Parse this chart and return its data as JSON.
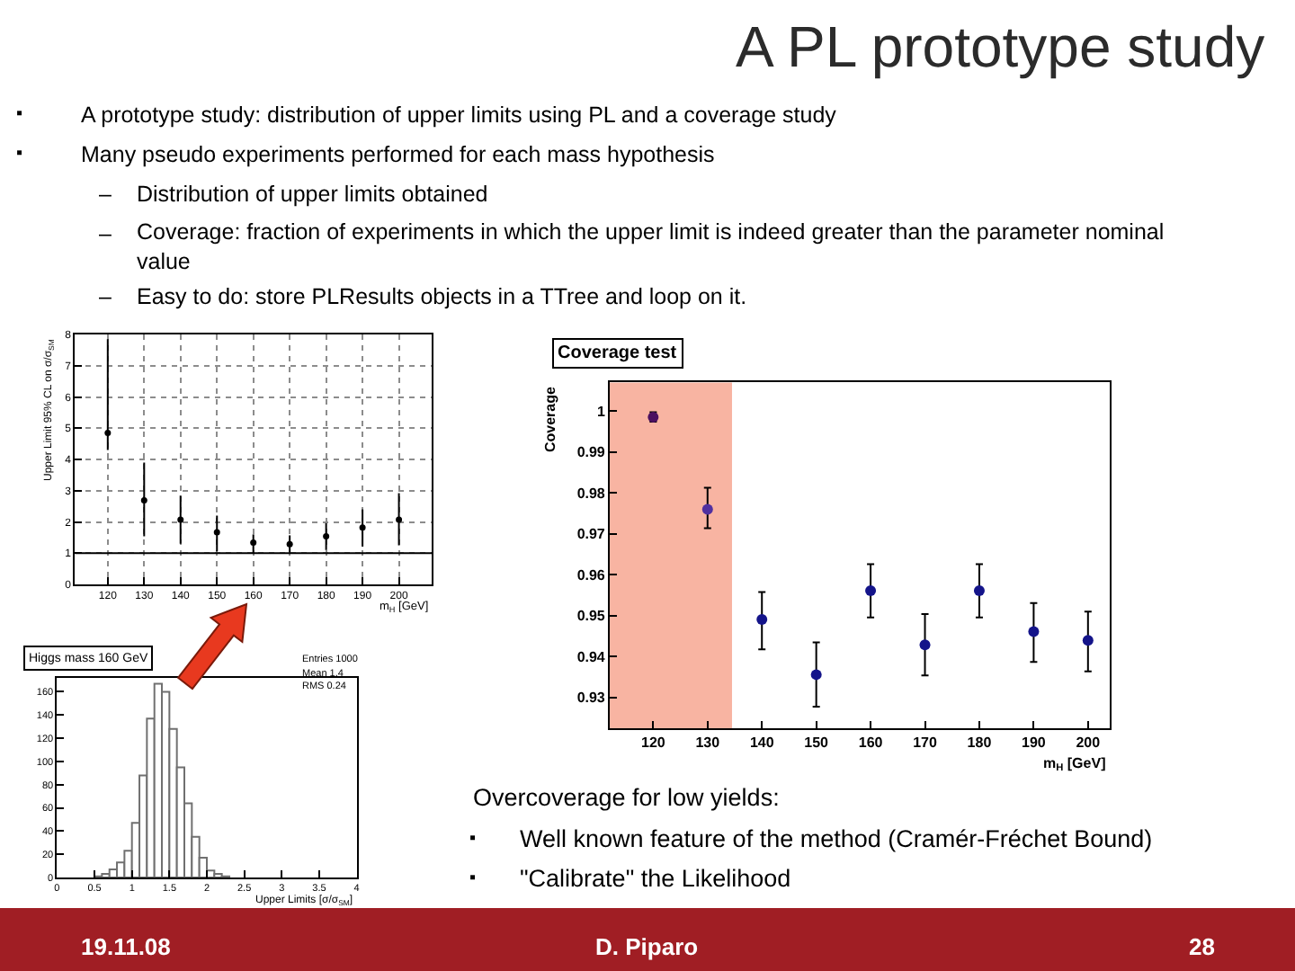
{
  "chart_data": [
    {
      "type": "other",
      "title": "A PL prototype study",
      "annotations": [
        "▪",
        "A prototype study: distribution of upper limits using PL and a coverage study",
        "▪",
        "Many pseudo experiments performed for each mass hypothesis",
        "–",
        "Distribution of upper limits obtained",
        "–",
        "Coverage: fraction of experiments in which the upper limit is indeed greater than the parameter nominal\nvalue",
        "–",
        "Easy to do: store PLResults objects in a TTree and loop on it.",
        "Overcoverage for low yields:",
        "▪",
        "Well known feature of the method (Cramér-Fréchet Bound)",
        "▪",
        "\"Calibrate\" the Likelihood",
        "19.11.08",
        "D. Piparo",
        "28"
      ]
    },
    {
      "type": "scatter",
      "xlabel": "m$_{H}$ [GeV]",
      "ylabel": "Upper Limit 95% CL on σ/σ$_{SM}$",
      "x": [
        120,
        130,
        140,
        150,
        160,
        170,
        180,
        190,
        200
      ],
      "values": [
        4.85,
        2.69,
        2.07,
        1.67,
        1.34,
        1.29,
        1.54,
        1.82,
        2.07
      ],
      "errors": [
        [
          4.3,
          7.85
        ],
        [
          1.54,
          3.9
        ],
        [
          1.3,
          2.84
        ],
        [
          1.06,
          2.2
        ],
        [
          0.98,
          1.6
        ],
        [
          1.02,
          1.57
        ],
        [
          1.1,
          1.96
        ],
        [
          1.21,
          2.4
        ],
        [
          1.25,
          2.92
        ]
      ],
      "color": "#000000",
      "marker": "circle",
      "xlim": [
        111,
        209
      ],
      "ylim": [
        0,
        8
      ],
      "xticks": [
        120,
        130,
        140,
        150,
        160,
        170,
        180,
        190,
        200
      ],
      "yticks": [
        0,
        1,
        2,
        3,
        4,
        5,
        6,
        7,
        8
      ],
      "grid": true,
      "ref_lines": [
        {
          "axis": "y",
          "value": 1,
          "color": "#000000"
        }
      ]
    },
    {
      "type": "scatter",
      "title": "Coverage test",
      "xlabel": "m$_{H}$ [GeV]",
      "ylabel": "Coverage",
      "x": [
        120,
        130,
        140,
        150,
        160,
        170,
        180,
        190,
        200
      ],
      "values": [
        0.9985,
        0.976,
        0.9491,
        0.9356,
        0.9561,
        0.9429,
        0.9561,
        0.9461,
        0.944
      ],
      "errors": [
        [
          0.9974,
          0.9997
        ],
        [
          0.9714,
          0.9813
        ],
        [
          0.9418,
          0.9558
        ],
        [
          0.9278,
          0.9435
        ],
        [
          0.9496,
          0.9626
        ],
        [
          0.9354,
          0.9504
        ],
        [
          0.9496,
          0.9626
        ],
        [
          0.9387,
          0.9531
        ],
        [
          0.9364,
          0.951
        ]
      ],
      "colors": [
        "#4b1060",
        "#5030a0",
        "#14148a",
        "#14148a",
        "#14148a",
        "#14148a",
        "#14148a",
        "#14148a",
        "#14148a"
      ],
      "marker": "circle",
      "xlim": [
        112,
        204
      ],
      "ylim": [
        0.9225,
        1.007
      ],
      "xticks": [
        120,
        130,
        140,
        150,
        160,
        170,
        180,
        190,
        200
      ],
      "yticks": [
        0.93,
        0.94,
        0.95,
        0.96,
        0.97,
        0.98,
        0.99,
        1
      ],
      "bands": [
        {
          "axis": "x",
          "from": 112,
          "to": 134.5,
          "color": "#f8b4a2"
        }
      ]
    },
    {
      "type": "histogram",
      "title": "Higgs mass 160 GeV",
      "xlabel": "Upper Limits [σ/σ$_{SM}$]",
      "bins": [
        0.5,
        0.6,
        0.7,
        0.8,
        0.9,
        1.0,
        1.1,
        1.2,
        1.3,
        1.4,
        1.5,
        1.6,
        1.7,
        1.8,
        1.9,
        2.0,
        2.1,
        2.2,
        2.3
      ],
      "values": [
        1,
        3,
        7,
        13,
        23,
        47,
        88,
        137,
        167,
        160,
        128,
        95,
        64,
        35,
        17,
        6,
        3,
        1
      ],
      "color": "#707070",
      "xlim": [
        0,
        4
      ],
      "ylim": [
        0,
        172
      ],
      "xticks": [
        0,
        0.5,
        1,
        1.5,
        2,
        2.5,
        3,
        3.5,
        4
      ],
      "yticks": [
        0,
        20,
        40,
        60,
        80,
        100,
        120,
        140,
        160
      ],
      "annotations": [
        "Entries 1000",
        "Mean 1.4",
        "RMS 0.24"
      ]
    }
  ]
}
